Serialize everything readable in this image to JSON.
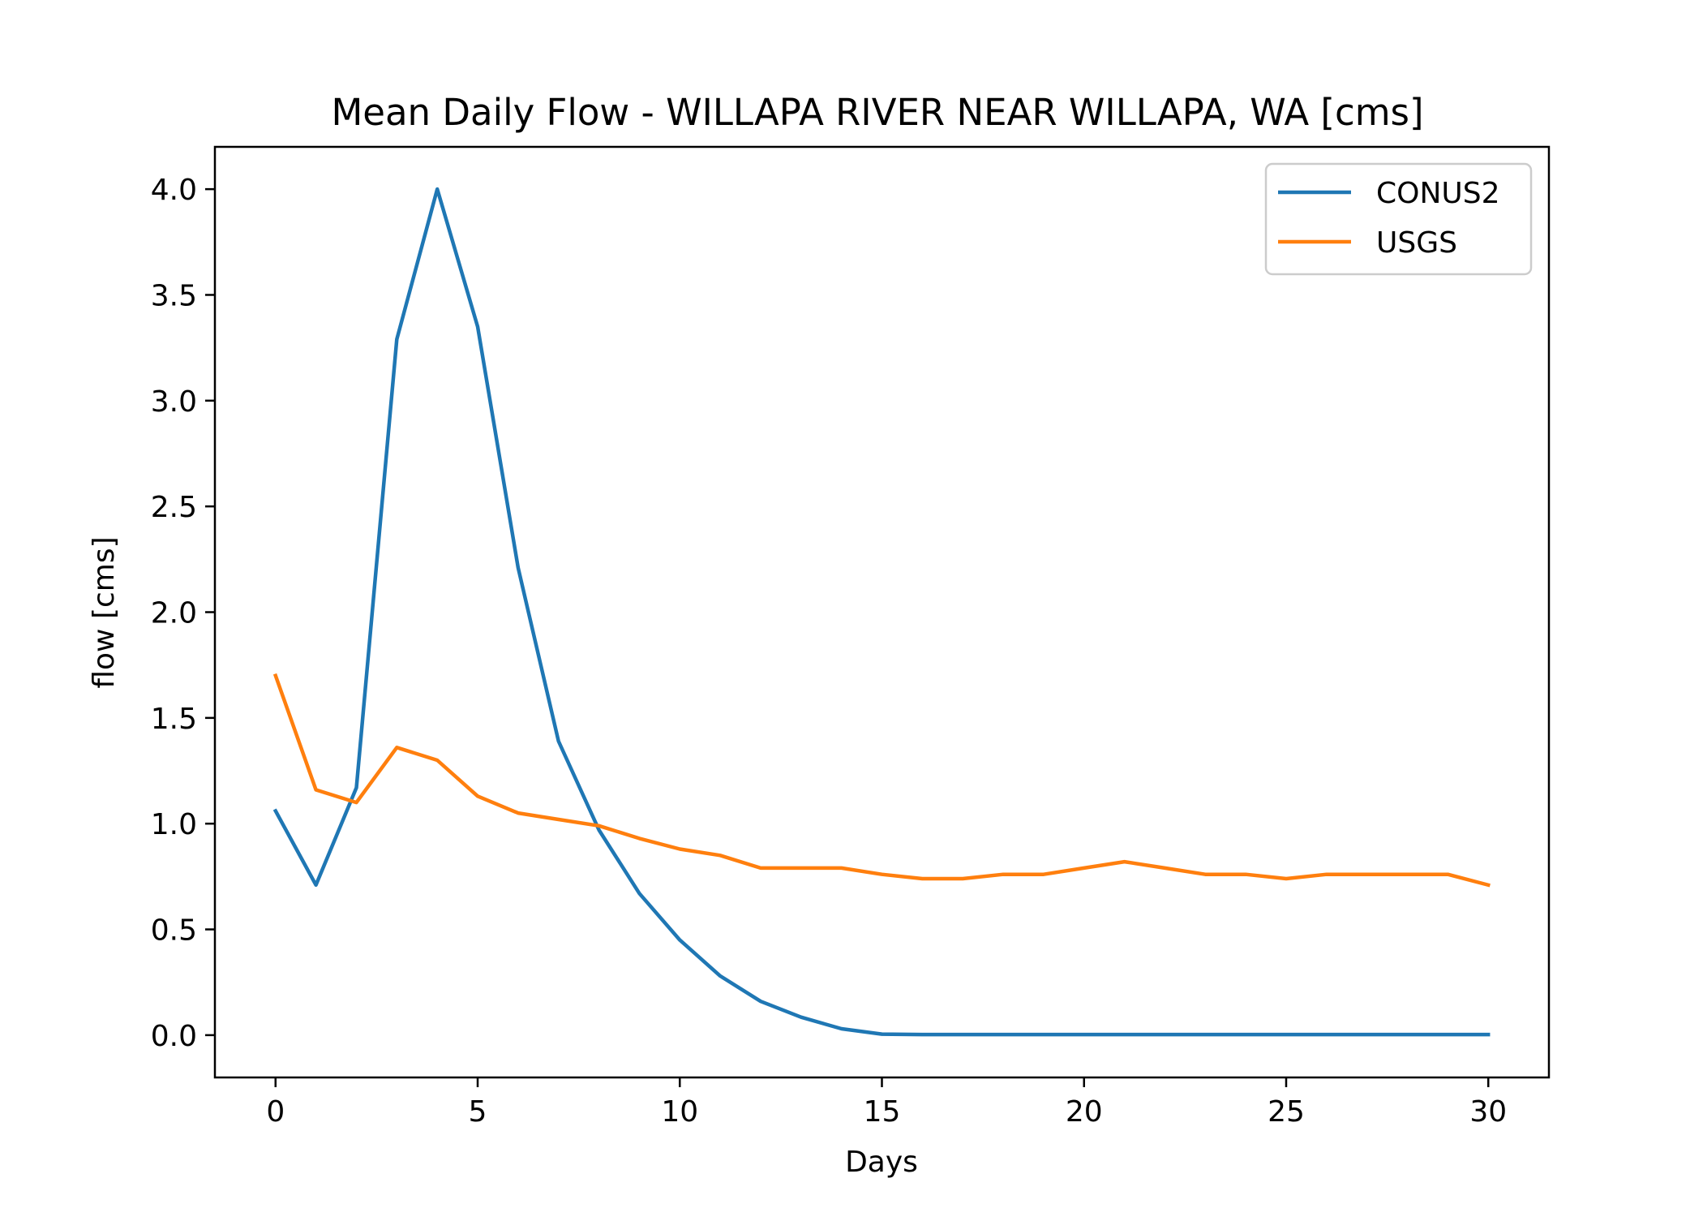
{
  "chart_data": {
    "type": "line",
    "title": "Mean Daily Flow - WILLAPA RIVER NEAR WILLAPA, WA [cms]",
    "xlabel": "Days",
    "ylabel": "flow [cms]",
    "xlim": [
      -1.5,
      31.5
    ],
    "ylim": [
      -0.2,
      4.2
    ],
    "xticks": [
      0,
      5,
      10,
      15,
      20,
      25,
      30
    ],
    "xtick_labels": [
      "0",
      "5",
      "10",
      "15",
      "20",
      "25",
      "30"
    ],
    "yticks": [
      0.0,
      0.5,
      1.0,
      1.5,
      2.0,
      2.5,
      3.0,
      3.5,
      4.0
    ],
    "ytick_labels": [
      "0.0",
      "0.5",
      "1.0",
      "1.5",
      "2.0",
      "2.5",
      "3.0",
      "3.5",
      "4.0"
    ],
    "grid": false,
    "legend_position": "upper right",
    "x": [
      0,
      1,
      2,
      3,
      4,
      5,
      6,
      7,
      8,
      9,
      10,
      11,
      12,
      13,
      14,
      15,
      16,
      17,
      18,
      19,
      20,
      21,
      22,
      23,
      24,
      25,
      26,
      27,
      28,
      29,
      30
    ],
    "series": [
      {
        "name": "CONUS2",
        "color": "#1f77b4",
        "values": [
          1.06,
          0.71,
          1.17,
          3.29,
          4.0,
          3.35,
          2.21,
          1.39,
          0.97,
          0.67,
          0.45,
          0.28,
          0.16,
          0.085,
          0.03,
          0.005,
          0.003,
          0.003,
          0.003,
          0.003,
          0.003,
          0.003,
          0.003,
          0.003,
          0.003,
          0.003,
          0.003,
          0.003,
          0.003,
          0.003,
          0.003
        ]
      },
      {
        "name": "USGS",
        "color": "#ff7f0e",
        "values": [
          1.7,
          1.16,
          1.1,
          1.36,
          1.3,
          1.13,
          1.05,
          1.02,
          0.99,
          0.93,
          0.88,
          0.85,
          0.79,
          0.79,
          0.79,
          0.76,
          0.74,
          0.74,
          0.76,
          0.76,
          0.79,
          0.82,
          0.79,
          0.76,
          0.76,
          0.74,
          0.76,
          0.76,
          0.76,
          0.76,
          0.71
        ]
      }
    ]
  }
}
